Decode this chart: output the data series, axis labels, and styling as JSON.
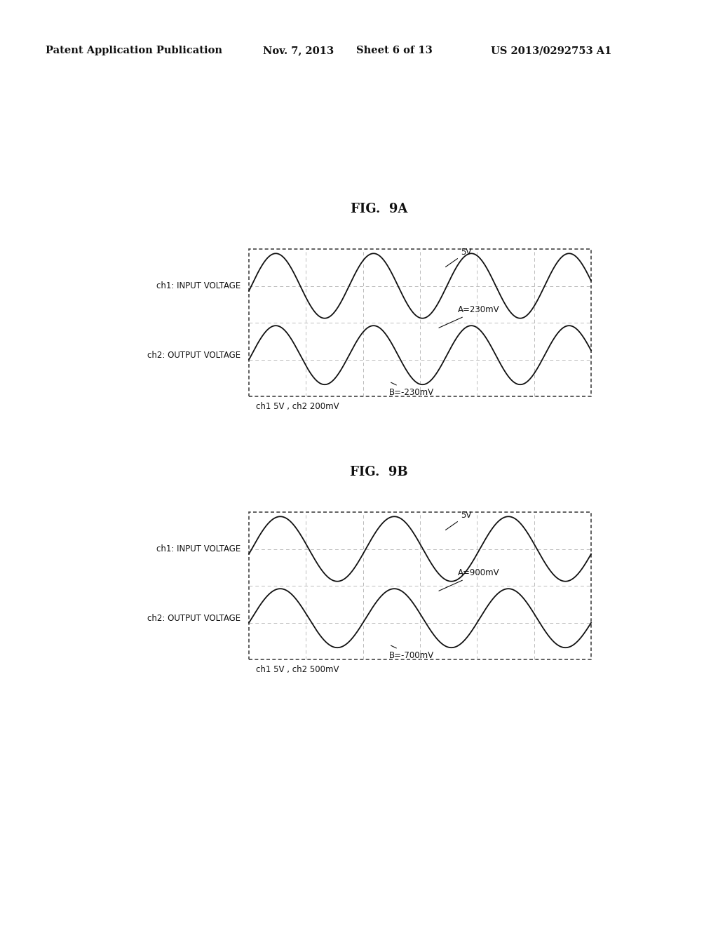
{
  "bg_color": "#ffffff",
  "header_text": "Patent Application Publication",
  "header_date": "Nov. 7, 2013",
  "header_sheet": "Sheet 6 of 13",
  "header_patent": "US 2013/0292753 A1",
  "fig9a_title": "FIG.  9A",
  "fig9b_title": "FIG.  9B",
  "fig9a_caption": "ch1 5V , ch2 200mV",
  "fig9b_caption": "ch1 5V , ch2 500mV",
  "ch1_label": "ch1: INPUT VOLTAGE",
  "ch2_label": "ch2: OUTPUT VOLTAGE",
  "fig9a_ann_top": "5V",
  "fig9a_ann_mid": "A=230mV",
  "fig9a_ann_bot": "B=-230mV",
  "fig9b_ann_top": "5V",
  "fig9b_ann_mid": "A=900mV",
  "fig9b_ann_bot": "B=-700mV",
  "border_color": "#444444",
  "grid_color": "#bbbbbb",
  "wave_color": "#111111",
  "text_color": "#111111",
  "scope_bg": "#ffffff",
  "cycles_9a": 3.5,
  "cycles_9b": 3.0,
  "ch1_amp_9a": 0.22,
  "ch2_amp_9a": 0.2,
  "ch1_amp_9b": 0.22,
  "ch2_amp_9b": 0.2,
  "grid_rows": 4,
  "grid_cols": 6
}
